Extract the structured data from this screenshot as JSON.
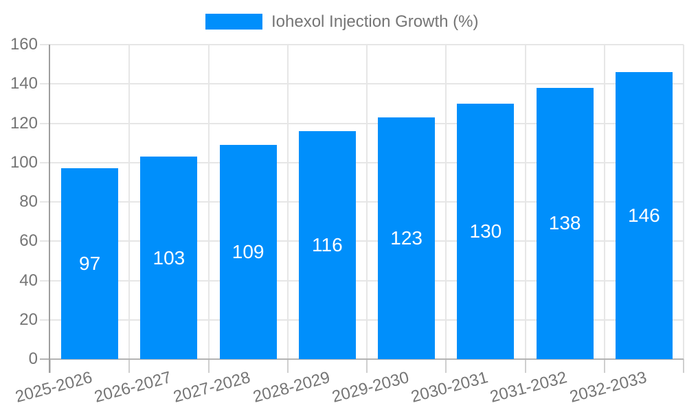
{
  "legend": {
    "swatch_color": "#008FFB",
    "label": "Iohexol Injection Growth (%)"
  },
  "chart_data": {
    "type": "bar",
    "title": "Iohexol Injection Growth (%)",
    "categories": [
      "2025-2026",
      "2026-2027",
      "2027-2028",
      "2028-2029",
      "2029-2030",
      "2030-2031",
      "2031-2032",
      "2032-2033"
    ],
    "series": [
      {
        "name": "Iohexol Injection Growth (%)",
        "values": [
          97,
          103,
          109,
          116,
          123,
          130,
          138,
          146
        ]
      }
    ],
    "values": [
      97,
      103,
      109,
      116,
      123,
      130,
      138,
      146
    ],
    "value_labels": [
      "97",
      "103",
      "109",
      "116",
      "123",
      "130",
      "138",
      "146"
    ],
    "xlabel": "",
    "ylabel": "",
    "ylim": [
      0,
      160
    ],
    "yticks": [
      0,
      20,
      40,
      60,
      80,
      100,
      120,
      140,
      160
    ],
    "grid": true,
    "legend_position": "top",
    "x_label_rotation_deg": -15,
    "bar_color": "#008FFB",
    "value_label_color": "#ffffff"
  },
  "colors": {
    "background": "#ffffff",
    "bar": "#008FFB",
    "grid_line": "#e6e6e6",
    "y_axis_line": "#9e9e9e",
    "x_axis_line": "#b3b3b3",
    "bottom_tick": "#cfcfcf",
    "label_text": "#757575",
    "value_text": "#ffffff"
  }
}
